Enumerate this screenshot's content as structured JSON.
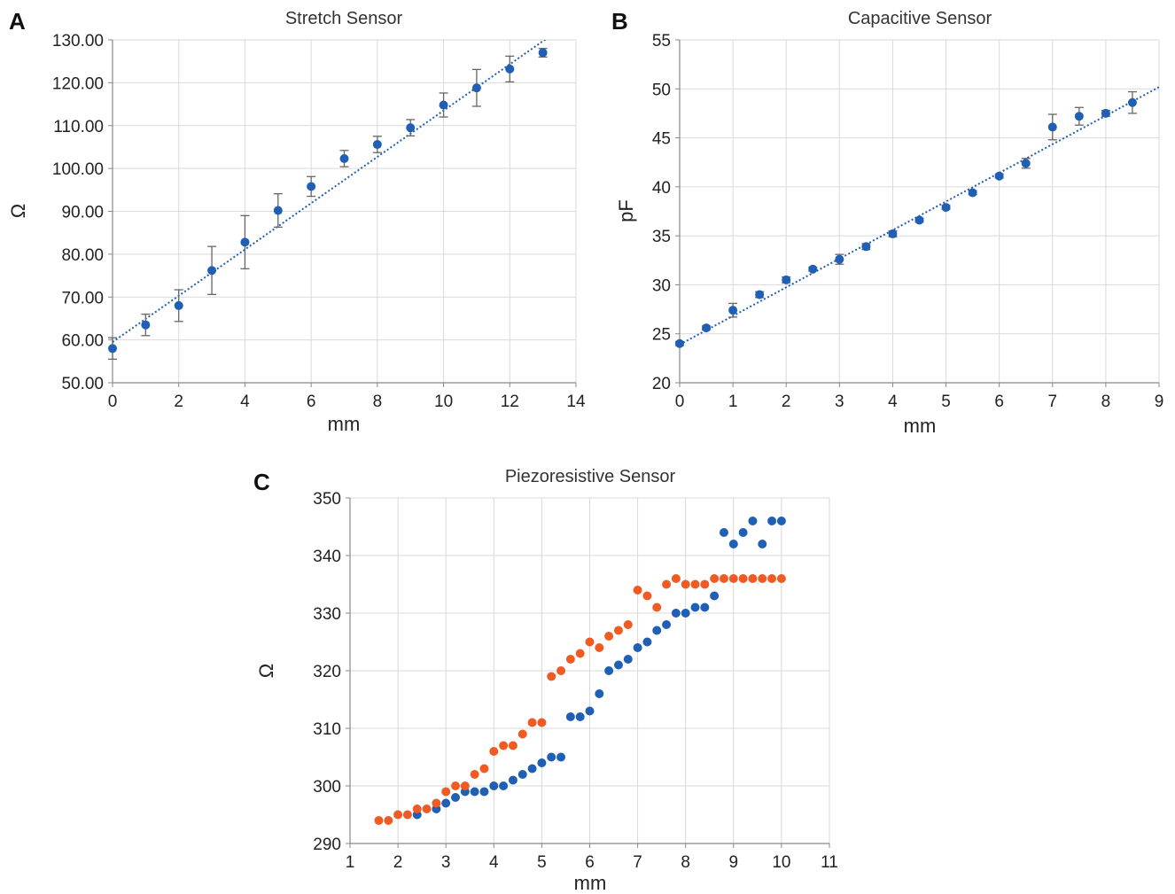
{
  "colors": {
    "blue": "#1f5fb4",
    "orange": "#ef5b22",
    "grid": "#d9d9d9"
  },
  "chart_data": [
    {
      "panel": "A",
      "type": "scatter",
      "title": "Stretch Sensor",
      "xlabel": "mm",
      "ylabel": "Ω",
      "xlim": [
        0,
        14
      ],
      "ylim": [
        50,
        130
      ],
      "xticks": [
        "0",
        "2",
        "4",
        "6",
        "8",
        "10",
        "12",
        "14"
      ],
      "yticks": [
        "50.00",
        "60.00",
        "70.00",
        "80.00",
        "90.00",
        "100.00",
        "110.00",
        "120.00",
        "130.00"
      ],
      "grid": true,
      "trendline": {
        "slope": 5.4,
        "intercept": 59.5
      },
      "series": [
        {
          "color": "#1f5fb4",
          "x": [
            0,
            1,
            2,
            3,
            4,
            5,
            6,
            7,
            8,
            9,
            10,
            11,
            12,
            13
          ],
          "y": [
            58.0,
            63.5,
            68.0,
            76.2,
            82.8,
            90.2,
            95.8,
            102.3,
            105.6,
            109.5,
            114.8,
            118.8,
            123.2,
            127.0
          ],
          "err": [
            2.5,
            2.5,
            3.7,
            5.6,
            6.2,
            3.9,
            2.3,
            1.9,
            1.9,
            1.9,
            2.8,
            4.3,
            3.0,
            1.0
          ]
        }
      ]
    },
    {
      "panel": "B",
      "type": "scatter",
      "title": "Capacitive Sensor",
      "xlabel": "mm",
      "ylabel": "pF",
      "xlim": [
        0,
        9
      ],
      "ylim": [
        20,
        55
      ],
      "xticks": [
        "0",
        "1",
        "2",
        "3",
        "4",
        "5",
        "6",
        "7",
        "8",
        "9"
      ],
      "yticks": [
        "20",
        "25",
        "30",
        "35",
        "40",
        "45",
        "50",
        "55"
      ],
      "grid": true,
      "trendline": {
        "slope": 2.92,
        "intercept": 23.9
      },
      "series": [
        {
          "color": "#1f5fb4",
          "x": [
            0,
            0.5,
            1,
            1.5,
            2,
            2.5,
            3,
            3.5,
            4,
            4.5,
            5,
            5.5,
            6,
            6.5,
            7,
            7.5,
            8,
            8.5
          ],
          "y": [
            24.0,
            25.6,
            27.4,
            29.0,
            30.5,
            31.6,
            32.6,
            33.9,
            35.2,
            36.6,
            37.9,
            39.4,
            41.1,
            42.4,
            46.1,
            47.2,
            47.5,
            48.6
          ],
          "err": [
            0.2,
            0.2,
            0.7,
            0.3,
            0.3,
            0.2,
            0.5,
            0.3,
            0.3,
            0.2,
            0.2,
            0.2,
            0.2,
            0.5,
            1.3,
            0.9,
            0.3,
            1.1
          ]
        }
      ]
    },
    {
      "panel": "C",
      "type": "scatter",
      "title": "Piezoresistive Sensor",
      "xlabel": "mm",
      "ylabel": "Ω",
      "xlim": [
        1,
        11
      ],
      "ylim": [
        290,
        350
      ],
      "xticks": [
        "1",
        "2",
        "3",
        "4",
        "5",
        "6",
        "7",
        "8",
        "9",
        "10",
        "11"
      ],
      "yticks": [
        "290",
        "300",
        "310",
        "320",
        "330",
        "340",
        "350"
      ],
      "grid": true,
      "series": [
        {
          "color": "#1f5fb4",
          "x": [
            2.4,
            2.8,
            3.0,
            3.2,
            3.4,
            3.6,
            3.8,
            4.0,
            4.2,
            4.4,
            4.6,
            4.8,
            5.0,
            5.2,
            5.4,
            5.6,
            5.8,
            6.0,
            6.2,
            6.4,
            6.6,
            6.8,
            7.0,
            7.2,
            7.4,
            7.6,
            7.8,
            8.0,
            8.2,
            8.4,
            8.6,
            8.8,
            9.0,
            9.2,
            9.4,
            9.6,
            9.8,
            10.0
          ],
          "y": [
            295,
            296,
            297,
            298,
            299,
            299,
            299,
            300,
            300,
            301,
            302,
            303,
            304,
            305,
            305,
            312,
            312,
            313,
            316,
            320,
            321,
            322,
            324,
            325,
            327,
            328,
            330,
            330,
            331,
            331,
            333,
            344,
            342,
            344,
            346,
            342,
            346,
            346
          ]
        },
        {
          "color": "#ef5b22",
          "x": [
            1.6,
            1.8,
            2.0,
            2.2,
            2.4,
            2.6,
            2.8,
            3.0,
            3.2,
            3.4,
            3.6,
            3.8,
            4.0,
            4.2,
            4.4,
            4.6,
            4.8,
            5.0,
            5.2,
            5.4,
            5.6,
            5.8,
            6.0,
            6.2,
            6.4,
            6.6,
            6.8,
            7.0,
            7.2,
            7.4,
            7.6,
            7.8,
            8.0,
            8.2,
            8.4,
            8.6,
            8.8,
            9.0,
            9.2,
            9.4,
            9.6,
            9.8,
            10.0
          ],
          "y": [
            294,
            294,
            295,
            295,
            296,
            296,
            297,
            299,
            300,
            300,
            302,
            303,
            306,
            307,
            307,
            309,
            311,
            311,
            319,
            320,
            322,
            323,
            325,
            324,
            326,
            327,
            328,
            334,
            333,
            331,
            335,
            336,
            335,
            335,
            335,
            336,
            336,
            336,
            336,
            336,
            336,
            336,
            336
          ]
        }
      ]
    }
  ]
}
